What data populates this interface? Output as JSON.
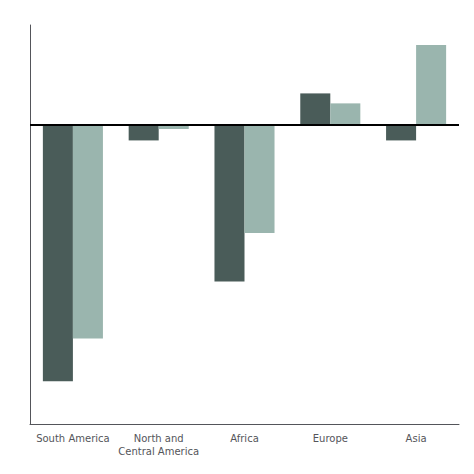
{
  "chart_data": {
    "type": "bar",
    "categories": [
      "South America",
      "North and\nCentral America",
      "Africa",
      "Europe",
      "Asia"
    ],
    "series": [
      {
        "color": "#4a5c59",
        "values": [
          -9.0,
          -0.55,
          -5.5,
          1.1,
          -0.55
        ]
      },
      {
        "color": "#9ab5ae",
        "values": [
          -7.5,
          -0.15,
          -3.8,
          0.75,
          2.8
        ]
      }
    ],
    "ylim": [
      -10.5,
      3.5
    ],
    "grid": false,
    "tick_labels": "x"
  }
}
